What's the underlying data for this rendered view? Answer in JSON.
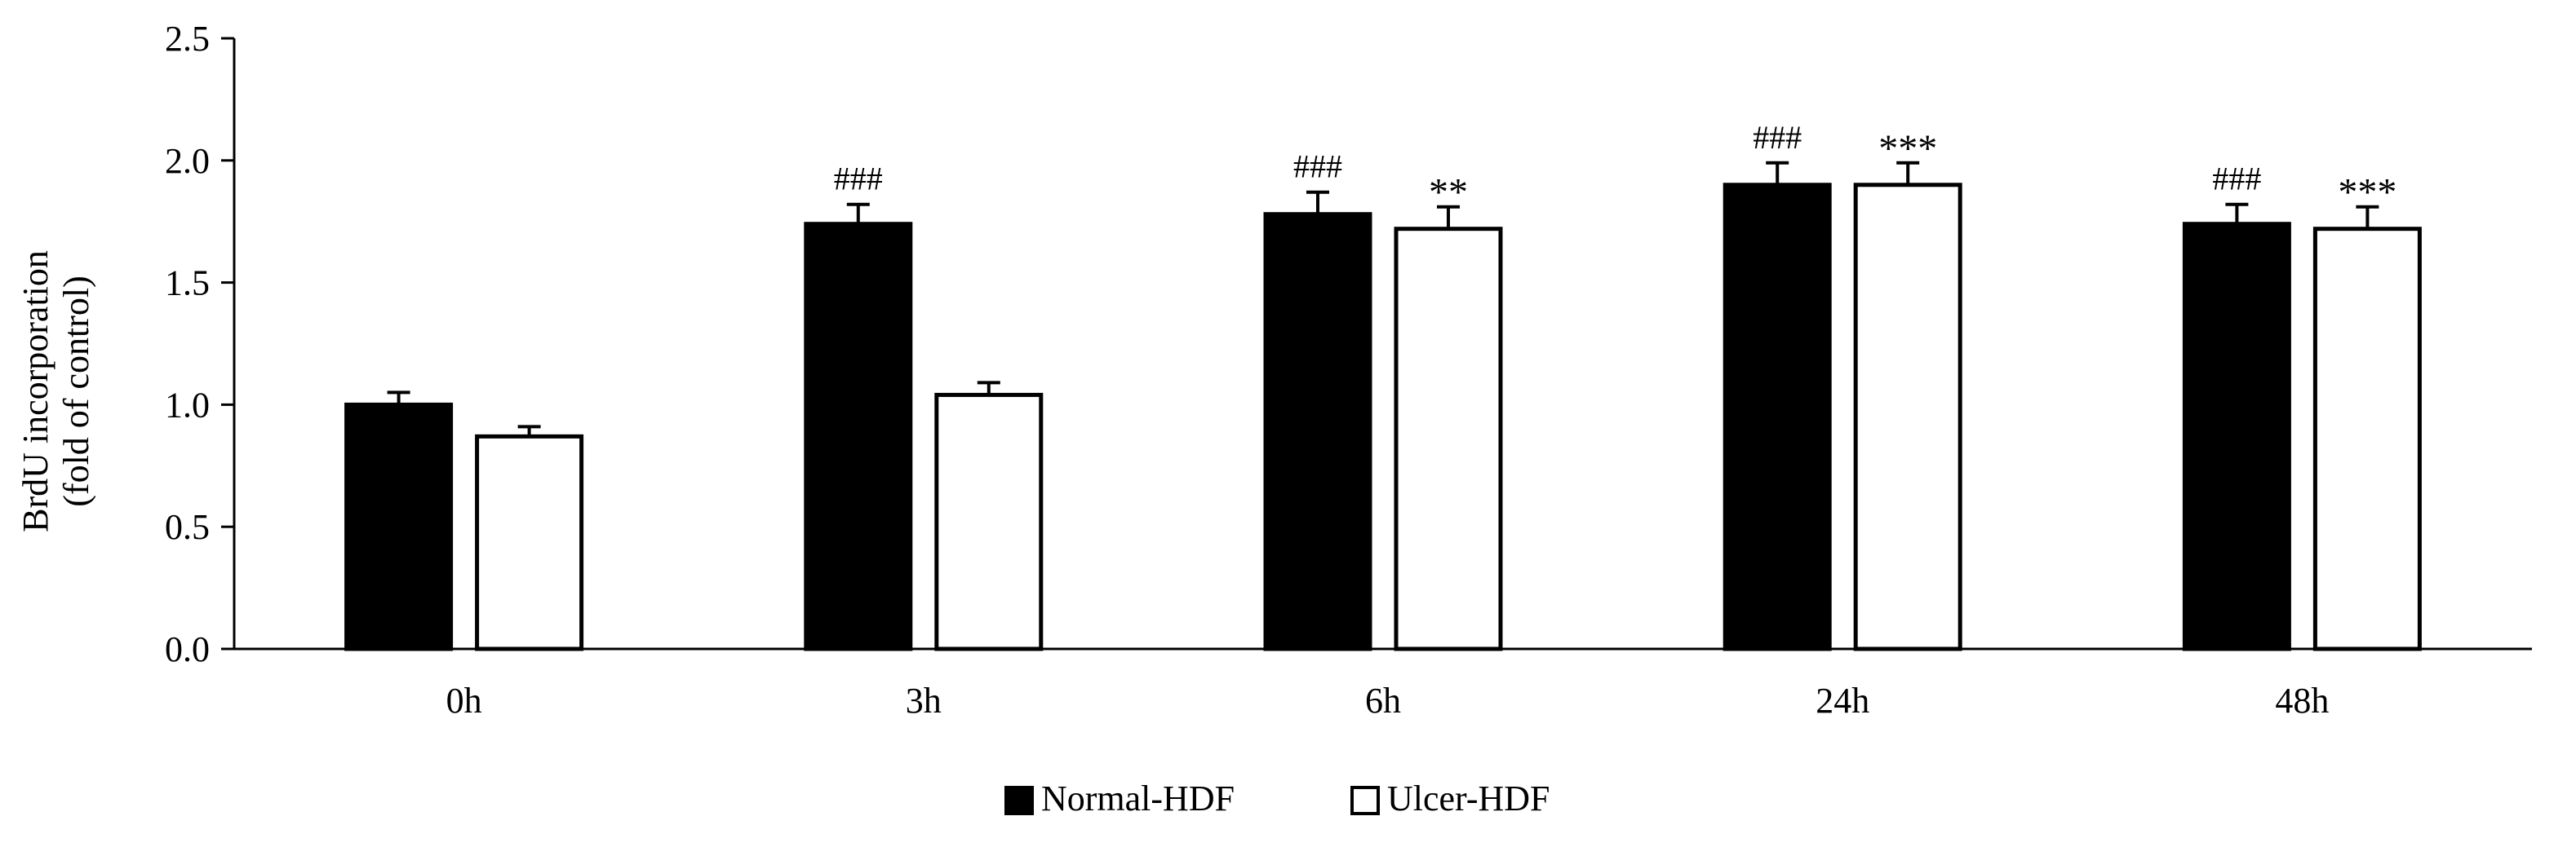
{
  "chart_data": {
    "type": "bar",
    "title": "",
    "xlabel": "",
    "ylabel_line1": "BrdU incorporation",
    "ylabel_line2": "(fold of control)",
    "categories": [
      "0h",
      "3h",
      "6h",
      "24h",
      "48h"
    ],
    "ylim": [
      0,
      2.5
    ],
    "yticks": [
      "0.0",
      "0.5",
      "1.0",
      "1.5",
      "2.0",
      "2.5"
    ],
    "grid": false,
    "legend_position": "bottom-center",
    "series": [
      {
        "name": "Normal-HDF",
        "fill": "#000000",
        "stroke": "#000000",
        "values": [
          1.0,
          1.74,
          1.78,
          1.9,
          1.74
        ],
        "errors": [
          0.05,
          0.08,
          0.09,
          0.09,
          0.08
        ],
        "annotations": [
          "",
          "###",
          "###",
          "###",
          "###"
        ]
      },
      {
        "name": "Ulcer-HDF",
        "fill": "#ffffff",
        "stroke": "#000000",
        "values": [
          0.87,
          1.04,
          1.72,
          1.9,
          1.72
        ],
        "errors": [
          0.04,
          0.05,
          0.09,
          0.09,
          0.09
        ],
        "annotations": [
          "",
          "",
          "**",
          "***",
          "***"
        ]
      }
    ]
  }
}
